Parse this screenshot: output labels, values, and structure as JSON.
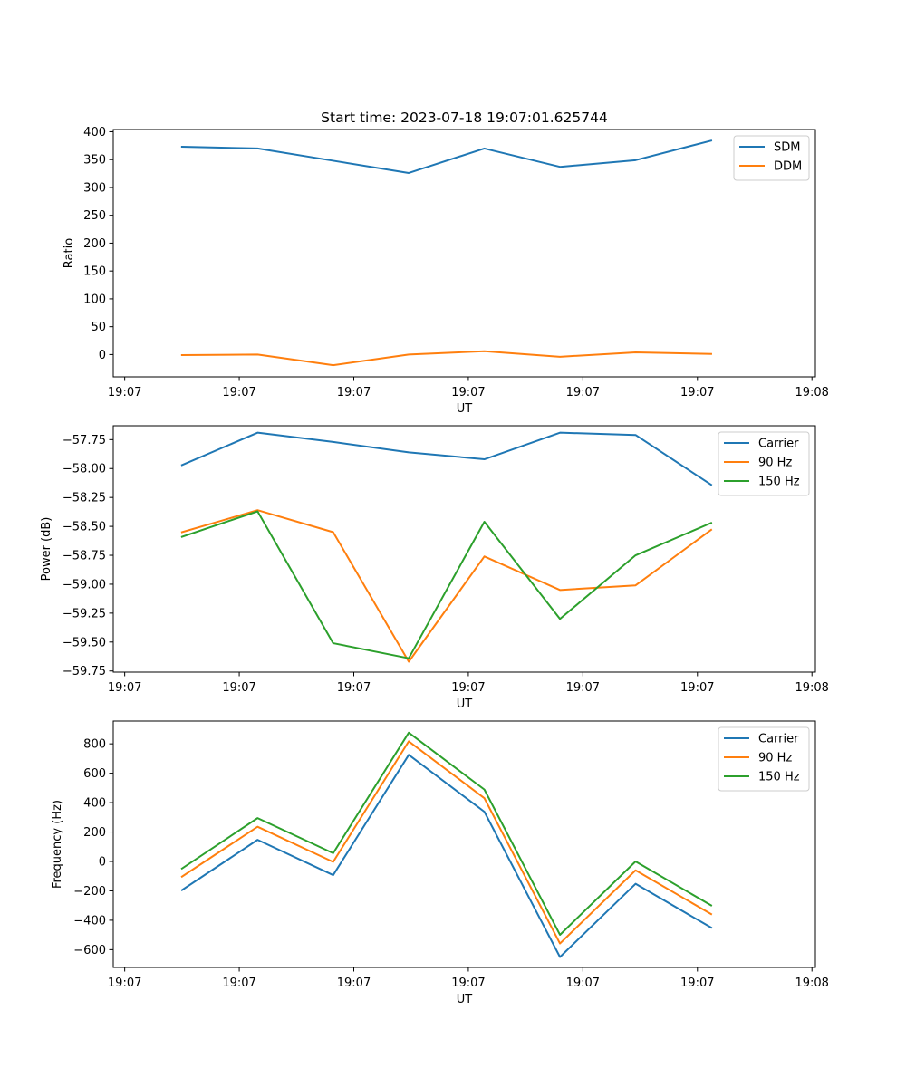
{
  "figure": {
    "title": "Start time: 2023-07-18 19:07:01.625744"
  },
  "colors": {
    "blue": "#1f77b4",
    "orange": "#ff7f0e",
    "green": "#2ca02c"
  },
  "chart_data": [
    {
      "type": "line",
      "title": "Start time: 2023-07-18 19:07:01.625744",
      "xlabel": "UT",
      "ylabel": "Ratio",
      "x_ticks": [
        "19:07",
        "19:07",
        "19:07",
        "19:07",
        "19:07",
        "19:07",
        "19:08"
      ],
      "x_tick_values": [
        0,
        1,
        2,
        3,
        4,
        5,
        6
      ],
      "xlim": [
        -0.1,
        6.03
      ],
      "y_ticks": [
        "0",
        "50",
        "100",
        "150",
        "200",
        "250",
        "300",
        "350",
        "400"
      ],
      "y_tick_values": [
        0,
        50,
        100,
        150,
        200,
        250,
        300,
        350,
        400
      ],
      "ylim": [
        -40,
        404
      ],
      "x": [
        0.5,
        1.16,
        1.82,
        2.48,
        3.14,
        3.8,
        4.46,
        5.12
      ],
      "series": [
        {
          "name": "SDM",
          "color": "#1f77b4",
          "values": [
            373,
            370,
            348,
            326,
            370,
            337,
            349,
            384
          ]
        },
        {
          "name": "DDM",
          "color": "#ff7f0e",
          "values": [
            -1,
            0,
            -19,
            0,
            6,
            -4,
            4,
            1
          ]
        }
      ],
      "legend": "top-right"
    },
    {
      "type": "line",
      "xlabel": "UT",
      "ylabel": "Power (dB)",
      "x_ticks": [
        "19:07",
        "19:07",
        "19:07",
        "19:07",
        "19:07",
        "19:07",
        "19:08"
      ],
      "x_tick_values": [
        0,
        1,
        2,
        3,
        4,
        5,
        6
      ],
      "xlim": [
        -0.1,
        6.03
      ],
      "y_ticks": [
        "−59.75",
        "−59.50",
        "−59.25",
        "−59.00",
        "−58.75",
        "−58.50",
        "−58.25",
        "−58.00",
        "−57.75"
      ],
      "y_tick_values": [
        -59.75,
        -59.5,
        -59.25,
        -59.0,
        -58.75,
        -58.5,
        -58.25,
        -58.0,
        -57.75
      ],
      "ylim": [
        -59.76,
        -57.63
      ],
      "x": [
        0.5,
        1.16,
        1.82,
        2.48,
        3.14,
        3.8,
        4.46,
        5.12
      ],
      "series": [
        {
          "name": "Carrier",
          "color": "#1f77b4",
          "values": [
            -57.97,
            -57.69,
            -57.77,
            -57.86,
            -57.92,
            -57.69,
            -57.71,
            -58.14
          ]
        },
        {
          "name": "90 Hz",
          "color": "#ff7f0e",
          "values": [
            -58.55,
            -58.36,
            -58.55,
            -59.67,
            -58.76,
            -59.05,
            -59.01,
            -58.53
          ]
        },
        {
          "name": "150 Hz",
          "color": "#2ca02c",
          "values": [
            -58.59,
            -58.37,
            -59.51,
            -59.64,
            -58.46,
            -59.3,
            -58.75,
            -58.47
          ]
        }
      ],
      "legend": "top-right"
    },
    {
      "type": "line",
      "xlabel": "UT",
      "ylabel": "Frequency (Hz)",
      "x_ticks": [
        "19:07",
        "19:07",
        "19:07",
        "19:07",
        "19:07",
        "19:07",
        "19:08"
      ],
      "x_tick_values": [
        0,
        1,
        2,
        3,
        4,
        5,
        6
      ],
      "xlim": [
        -0.1,
        6.03
      ],
      "y_ticks": [
        "−600",
        "−400",
        "−200",
        "0",
        "200",
        "400",
        "600",
        "800"
      ],
      "y_tick_values": [
        -600,
        -400,
        -200,
        0,
        200,
        400,
        600,
        800
      ],
      "ylim": [
        -721,
        955
      ],
      "x": [
        0.5,
        1.16,
        1.82,
        2.48,
        3.14,
        3.8,
        4.46,
        5.12
      ],
      "series": [
        {
          "name": "Carrier",
          "color": "#1f77b4",
          "values": [
            -195,
            147,
            -93,
            725,
            338,
            -650,
            -152,
            -450
          ]
        },
        {
          "name": "90 Hz",
          "color": "#ff7f0e",
          "values": [
            -103,
            236,
            -3,
            817,
            430,
            -558,
            -60,
            -358
          ]
        },
        {
          "name": "150 Hz",
          "color": "#2ca02c",
          "values": [
            -48,
            295,
            56,
            876,
            489,
            -499,
            0,
            -299
          ]
        }
      ],
      "legend": "top-right"
    }
  ]
}
